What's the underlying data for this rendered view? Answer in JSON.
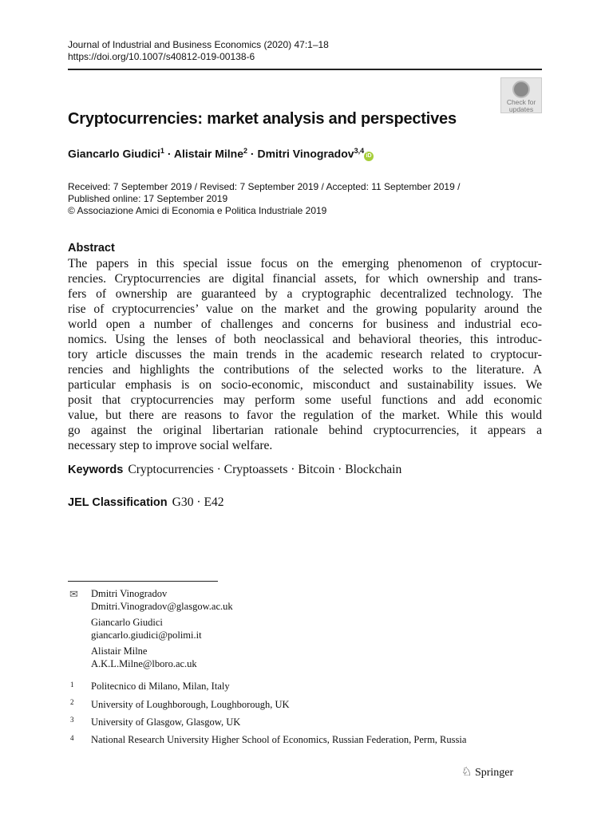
{
  "journal": {
    "citation": "Journal of Industrial and Business Economics (2020) 47:1–18",
    "doi": "https://doi.org/10.1007/s40812-019-00138-6"
  },
  "badge": {
    "line1": "Check for",
    "line2": "updates"
  },
  "title": "Cryptocurrencies: market analysis and perspectives",
  "authors": [
    {
      "name": "Giancarlo Giudici",
      "aff": "1"
    },
    {
      "name": "Alistair Milne",
      "aff": "2"
    },
    {
      "name": "Dmitri Vinogradov",
      "aff": "3,4"
    }
  ],
  "separator": " · ",
  "orcid": "iD",
  "dates": {
    "line1": "Received: 7 September 2019 / Revised: 7 September 2019 / Accepted: 11 September 2019 /",
    "line2": "Published online: 17 September 2019",
    "line3": "© Associazione Amici di Economia e Politica Industriale 2019"
  },
  "abstract": {
    "heading": "Abstract",
    "lines": [
      "The papers in this special issue focus on the emerging phenomenon of cryptocur-",
      "rencies. Cryptocurrencies are digital financial assets, for which ownership and trans-",
      "fers of ownership are guaranteed by a cryptographic decentralized technology. The",
      "rise of cryptocurrencies’ value on the market and the growing popularity around the",
      "world open a number of challenges and concerns for business and industrial eco-",
      "nomics. Using the lenses of both neoclassical and behavioral theories, this introduc-",
      "tory article discusses the main trends in the academic research related to cryptocur-",
      "rencies and highlights the contributions of the selected works to the literature. A",
      "particular emphasis is on socio-economic, misconduct and sustainability issues. We",
      "posit that cryptocurrencies may perform some useful functions and add economic",
      "value, but there are reasons to favor the regulation of the market. While this would",
      "go against the original libertarian rationale behind cryptocurrencies, it appears a",
      "necessary step to improve social welfare."
    ]
  },
  "keywords": {
    "label": "Keywords",
    "value": "Cryptocurrencies · Cryptoassets · Bitcoin · Blockchain"
  },
  "jel": {
    "label": "JEL Classification",
    "value": "G30 · E42"
  },
  "contacts": [
    {
      "name": "Dmitri Vinogradov",
      "email": "Dmitri.Vinogradov@glasgow.ac.uk"
    },
    {
      "name": "Giancarlo Giudici",
      "email": "giancarlo.giudici@polimi.it"
    },
    {
      "name": "Alistair Milne",
      "email": "A.K.L.Milne@lboro.ac.uk"
    }
  ],
  "affiliations": [
    {
      "num": "1",
      "text": "Politecnico di Milano, Milan, Italy"
    },
    {
      "num": "2",
      "text": "University of Loughborough, Loughborough, UK"
    },
    {
      "num": "3",
      "text": "University of Glasgow, Glasgow, UK"
    },
    {
      "num": "4",
      "text": "National Research University Higher School of Economics, Russian Federation, Perm, Russia"
    }
  ],
  "publisher": "Springer"
}
